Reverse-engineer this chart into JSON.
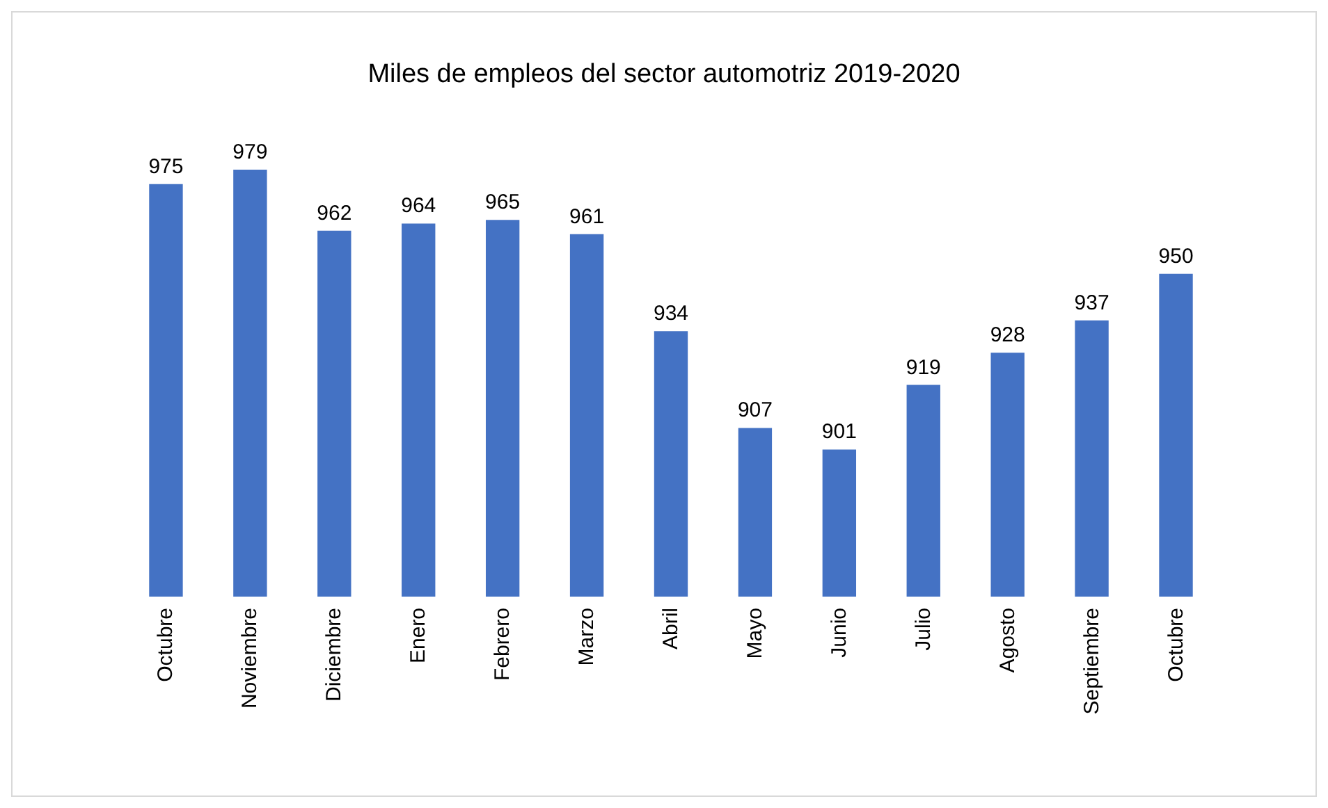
{
  "chart_data": {
    "type": "bar",
    "title": "Miles de empleos del sector automotriz 2019-2020",
    "categories": [
      "Octubre",
      "Noviembre",
      "Diciembre",
      "Enero",
      "Febrero",
      "Marzo",
      "Abril",
      "Mayo",
      "Junio",
      "Julio",
      "Agosto",
      "Septiembre",
      "Octubre"
    ],
    "values": [
      975,
      979,
      962,
      964,
      965,
      961,
      934,
      907,
      901,
      919,
      928,
      937,
      950
    ],
    "color": "#4472c4",
    "ylim": [
      860,
      979
    ],
    "data_labels": true,
    "tick_labels": "x"
  }
}
